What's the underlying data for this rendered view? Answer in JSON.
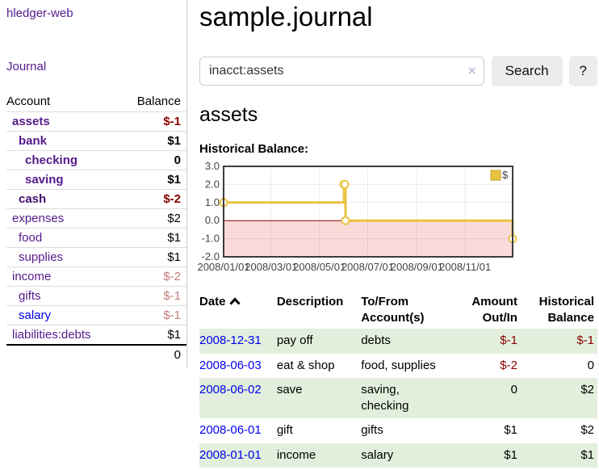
{
  "app": {
    "title": "hledger-web",
    "nav_journal": "Journal"
  },
  "icons": {
    "clear": "×"
  },
  "sidebar": {
    "header": {
      "account": "Account",
      "balance": "Balance"
    },
    "accounts": [
      {
        "name": "assets",
        "balance": "$-1",
        "depth": 1,
        "bold": true,
        "name_color": "#551a8b",
        "balance_color": "#8b0000"
      },
      {
        "name": "bank",
        "balance": "$1",
        "depth": 2,
        "bold": true,
        "name_color": "#551a8b",
        "balance_color": "#000000"
      },
      {
        "name": "checking",
        "balance": "0",
        "depth": 3,
        "bold": true,
        "name_color": "#551a8b",
        "balance_color": "#000000"
      },
      {
        "name": "saving",
        "balance": "$1",
        "depth": 3,
        "bold": true,
        "name_color": "#551a8b",
        "balance_color": "#000000"
      },
      {
        "name": "cash",
        "balance": "$-2",
        "depth": 2,
        "bold": true,
        "name_color": "#46106e",
        "balance_color": "#8b0000"
      },
      {
        "name": "expenses",
        "balance": "$2",
        "depth": 1,
        "bold": false,
        "name_color": "#551a8b",
        "balance_color": "#000000"
      },
      {
        "name": "food",
        "balance": "$1",
        "depth": 2,
        "bold": false,
        "name_color": "#551a8b",
        "balance_color": "#000000"
      },
      {
        "name": "supplies",
        "balance": "$1",
        "depth": 2,
        "bold": false,
        "name_color": "#551a8b",
        "balance_color": "#000000"
      },
      {
        "name": "income",
        "balance": "$-2",
        "depth": 1,
        "bold": false,
        "name_color": "#551a8b",
        "balance_color": "#c47a7a"
      },
      {
        "name": "gifts",
        "balance": "$-1",
        "depth": 2,
        "bold": false,
        "name_color": "#551a8b",
        "balance_color": "#c47a7a"
      },
      {
        "name": "salary",
        "balance": "$-1",
        "depth": 2,
        "bold": false,
        "name_color": "#0000ee",
        "balance_color": "#c47a7a"
      },
      {
        "name": "liabilities:debts",
        "balance": "$1",
        "depth": 1,
        "bold": false,
        "name_color": "#551a8b",
        "balance_color": "#000000"
      }
    ],
    "total": "0"
  },
  "main": {
    "title": "sample.journal",
    "search": {
      "value": "inacct:assets",
      "button": "Search",
      "help": "?"
    },
    "account_heading": "assets",
    "chart_label": "Historical Balance:",
    "register": {
      "columns": [
        {
          "label": "Date",
          "sortable": true
        },
        {
          "label": "Description"
        },
        {
          "label": "To/From Account(s)"
        },
        {
          "label": "Amount Out/In",
          "align": "right"
        },
        {
          "label": "Historical Balance",
          "align": "right"
        }
      ],
      "rows": [
        {
          "date": "2008-12-31",
          "description": "pay off",
          "accounts": "debts",
          "amount": "$-1",
          "amount_color": "#8b0000",
          "balance": "$-1",
          "balance_color": "#8b0000",
          "highlight": true
        },
        {
          "date": "2008-06-03",
          "description": "eat & shop",
          "accounts": "food, supplies",
          "amount": "$-2",
          "amount_color": "#8b0000",
          "balance": "0",
          "balance_color": "#000000",
          "highlight": false
        },
        {
          "date": "2008-06-02",
          "description": "save",
          "accounts": "saving, checking",
          "amount": "0",
          "amount_color": "#000000",
          "balance": "$2",
          "balance_color": "#000000",
          "highlight": true
        },
        {
          "date": "2008-06-01",
          "description": "gift",
          "accounts": "gifts",
          "amount": "$1",
          "amount_color": "#000000",
          "balance": "$2",
          "balance_color": "#000000",
          "highlight": false
        },
        {
          "date": "2008-01-01",
          "description": "income",
          "accounts": "salary",
          "amount": "$1",
          "amount_color": "#000000",
          "balance": "$1",
          "balance_color": "#000000",
          "highlight": true
        }
      ]
    }
  },
  "chart_data": {
    "type": "line",
    "step": true,
    "title": "Historical Balance:",
    "series": [
      {
        "name": "$",
        "color": "#e9c342",
        "points": [
          [
            "2008-01-01",
            1
          ],
          [
            "2008-06-01",
            2
          ],
          [
            "2008-06-02",
            2
          ],
          [
            "2008-06-03",
            0
          ],
          [
            "2008-12-31",
            -1
          ]
        ]
      }
    ],
    "x_range": [
      "2008-01-01",
      "2008-12-31"
    ],
    "x_ticks": [
      "2008/01/01",
      "2008/03/01",
      "2008/05/01",
      "2008/07/01",
      "2008/09/01",
      "2008/11/01"
    ],
    "y_ticks": [
      "3.0",
      "2.0",
      "1.0",
      "0.0",
      "-1.0",
      "-2.0"
    ],
    "ylim": [
      -2,
      3
    ],
    "grid": true,
    "legend_position": "top-right",
    "zero_line_color": "#8b0000",
    "negative_region_color": "#fbdada",
    "border_color": "#3c3c3c",
    "tick_label_color": "#444444"
  }
}
